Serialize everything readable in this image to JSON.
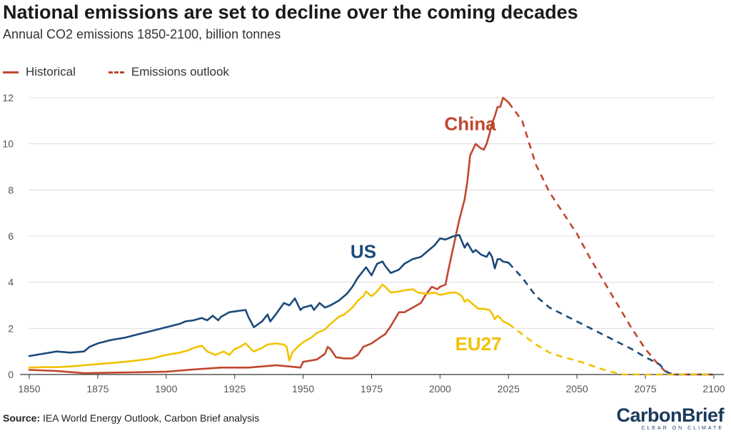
{
  "title": "National emissions are set to decline over the coming decades",
  "subtitle": "Annual CO2 emissions 1850-2100, billion tonnes",
  "legend": {
    "historical": "Historical",
    "outlook": "Emissions outlook"
  },
  "source": {
    "label": "Source:",
    "text": "IEA World Energy Outlook, Carbon Brief analysis"
  },
  "brand": {
    "name_part1": "Carbon",
    "name_part2": "Brief",
    "tagline": "CLEAR ON CLIMATE"
  },
  "colors": {
    "china": "#c0472e",
    "us": "#1b4a7a",
    "eu27": "#f2c200",
    "grid": "#dcdcdc",
    "axis": "#333333"
  },
  "chart_data": {
    "type": "line",
    "title": "National emissions are set to decline over the coming decades",
    "ylabel": "",
    "xlabel": "",
    "xlim": [
      1850,
      2100
    ],
    "ylim": [
      0,
      12
    ],
    "x_ticks": [
      1850,
      1875,
      1900,
      1925,
      1950,
      1975,
      2000,
      2025,
      2050,
      2075,
      2100
    ],
    "y_ticks": [
      0,
      2,
      4,
      6,
      8,
      10,
      12
    ],
    "grid": "horizontal",
    "legend_position": "top-left",
    "series": [
      {
        "name": "China",
        "color_key": "china",
        "historical": [
          [
            1850,
            0.2
          ],
          [
            1860,
            0.15
          ],
          [
            1870,
            0.06
          ],
          [
            1880,
            0.08
          ],
          [
            1890,
            0.1
          ],
          [
            1900,
            0.12
          ],
          [
            1910,
            0.22
          ],
          [
            1920,
            0.3
          ],
          [
            1930,
            0.3
          ],
          [
            1940,
            0.4
          ],
          [
            1945,
            0.35
          ],
          [
            1949,
            0.3
          ],
          [
            1950,
            0.55
          ],
          [
            1955,
            0.65
          ],
          [
            1958,
            0.9
          ],
          [
            1959,
            1.2
          ],
          [
            1960,
            1.1
          ],
          [
            1962,
            0.75
          ],
          [
            1965,
            0.7
          ],
          [
            1968,
            0.7
          ],
          [
            1970,
            0.85
          ],
          [
            1972,
            1.2
          ],
          [
            1975,
            1.35
          ],
          [
            1978,
            1.6
          ],
          [
            1980,
            1.75
          ],
          [
            1982,
            2.1
          ],
          [
            1985,
            2.7
          ],
          [
            1987,
            2.7
          ],
          [
            1990,
            2.9
          ],
          [
            1993,
            3.1
          ],
          [
            1995,
            3.5
          ],
          [
            1997,
            3.8
          ],
          [
            1999,
            3.7
          ],
          [
            2000,
            3.8
          ],
          [
            2002,
            3.9
          ],
          [
            2003,
            4.5
          ],
          [
            2005,
            5.6
          ],
          [
            2007,
            6.7
          ],
          [
            2009,
            7.6
          ],
          [
            2010,
            8.4
          ],
          [
            2011,
            9.5
          ],
          [
            2013,
            10.0
          ],
          [
            2015,
            9.8
          ],
          [
            2016,
            9.75
          ],
          [
            2017,
            10.0
          ],
          [
            2018,
            10.4
          ],
          [
            2019,
            10.9
          ],
          [
            2020,
            11.2
          ],
          [
            2021,
            11.6
          ],
          [
            2022,
            11.6
          ],
          [
            2023,
            12.0
          ],
          [
            2024,
            11.9
          ],
          [
            2025,
            11.8
          ]
        ],
        "outlook": [
          [
            2025,
            11.8
          ],
          [
            2030,
            11.0
          ],
          [
            2035,
            9.1
          ],
          [
            2040,
            7.9
          ],
          [
            2045,
            7.0
          ],
          [
            2050,
            6.1
          ],
          [
            2055,
            5.0
          ],
          [
            2060,
            4.0
          ],
          [
            2065,
            3.0
          ],
          [
            2070,
            2.0
          ],
          [
            2075,
            1.1
          ],
          [
            2080,
            0.4
          ],
          [
            2083,
            0.05
          ],
          [
            2085,
            0.0
          ],
          [
            2100,
            0.0
          ]
        ]
      },
      {
        "name": "US",
        "color_key": "us",
        "historical": [
          [
            1850,
            0.8
          ],
          [
            1855,
            0.9
          ],
          [
            1860,
            1.0
          ],
          [
            1865,
            0.95
          ],
          [
            1870,
            1.0
          ],
          [
            1872,
            1.2
          ],
          [
            1875,
            1.35
          ],
          [
            1880,
            1.5
          ],
          [
            1885,
            1.6
          ],
          [
            1890,
            1.75
          ],
          [
            1895,
            1.9
          ],
          [
            1900,
            2.05
          ],
          [
            1905,
            2.2
          ],
          [
            1907,
            2.3
          ],
          [
            1910,
            2.35
          ],
          [
            1913,
            2.45
          ],
          [
            1915,
            2.35
          ],
          [
            1917,
            2.55
          ],
          [
            1919,
            2.35
          ],
          [
            1920,
            2.5
          ],
          [
            1923,
            2.7
          ],
          [
            1926,
            2.75
          ],
          [
            1929,
            2.8
          ],
          [
            1930,
            2.5
          ],
          [
            1932,
            2.05
          ],
          [
            1935,
            2.3
          ],
          [
            1937,
            2.6
          ],
          [
            1938,
            2.3
          ],
          [
            1940,
            2.6
          ],
          [
            1943,
            3.1
          ],
          [
            1945,
            3.0
          ],
          [
            1947,
            3.3
          ],
          [
            1949,
            2.8
          ],
          [
            1950,
            2.9
          ],
          [
            1953,
            3.0
          ],
          [
            1954,
            2.8
          ],
          [
            1956,
            3.1
          ],
          [
            1958,
            2.9
          ],
          [
            1960,
            3.0
          ],
          [
            1963,
            3.2
          ],
          [
            1966,
            3.5
          ],
          [
            1968,
            3.8
          ],
          [
            1970,
            4.2
          ],
          [
            1972,
            4.5
          ],
          [
            1973,
            4.65
          ],
          [
            1975,
            4.3
          ],
          [
            1977,
            4.8
          ],
          [
            1979,
            4.9
          ],
          [
            1980,
            4.7
          ],
          [
            1982,
            4.4
          ],
          [
            1985,
            4.55
          ],
          [
            1987,
            4.8
          ],
          [
            1990,
            5.0
          ],
          [
            1993,
            5.1
          ],
          [
            1995,
            5.3
          ],
          [
            1998,
            5.6
          ],
          [
            2000,
            5.9
          ],
          [
            2002,
            5.85
          ],
          [
            2005,
            6.0
          ],
          [
            2007,
            6.05
          ],
          [
            2009,
            5.5
          ],
          [
            2010,
            5.7
          ],
          [
            2012,
            5.3
          ],
          [
            2013,
            5.4
          ],
          [
            2015,
            5.2
          ],
          [
            2017,
            5.1
          ],
          [
            2018,
            5.3
          ],
          [
            2019,
            5.1
          ],
          [
            2020,
            4.6
          ],
          [
            2021,
            5.0
          ],
          [
            2022,
            5.0
          ],
          [
            2023,
            4.9
          ],
          [
            2025,
            4.85
          ]
        ],
        "outlook": [
          [
            2025,
            4.85
          ],
          [
            2030,
            4.2
          ],
          [
            2035,
            3.4
          ],
          [
            2040,
            2.9
          ],
          [
            2045,
            2.6
          ],
          [
            2050,
            2.3
          ],
          [
            2055,
            2.0
          ],
          [
            2060,
            1.7
          ],
          [
            2065,
            1.4
          ],
          [
            2070,
            1.1
          ],
          [
            2075,
            0.75
          ],
          [
            2080,
            0.45
          ],
          [
            2083,
            0.1
          ],
          [
            2085,
            0.0
          ],
          [
            2100,
            0.0
          ]
        ]
      },
      {
        "name": "EU27",
        "color_key": "eu27",
        "historical": [
          [
            1850,
            0.3
          ],
          [
            1855,
            0.32
          ],
          [
            1860,
            0.32
          ],
          [
            1865,
            0.35
          ],
          [
            1870,
            0.4
          ],
          [
            1875,
            0.45
          ],
          [
            1880,
            0.5
          ],
          [
            1885,
            0.55
          ],
          [
            1890,
            0.62
          ],
          [
            1895,
            0.7
          ],
          [
            1900,
            0.85
          ],
          [
            1905,
            0.95
          ],
          [
            1908,
            1.05
          ],
          [
            1910,
            1.15
          ],
          [
            1913,
            1.25
          ],
          [
            1915,
            1.0
          ],
          [
            1917,
            0.9
          ],
          [
            1918,
            0.85
          ],
          [
            1919,
            0.9
          ],
          [
            1921,
            1.0
          ],
          [
            1923,
            0.85
          ],
          [
            1925,
            1.1
          ],
          [
            1927,
            1.2
          ],
          [
            1929,
            1.35
          ],
          [
            1931,
            1.1
          ],
          [
            1932,
            1.0
          ],
          [
            1935,
            1.15
          ],
          [
            1937,
            1.3
          ],
          [
            1940,
            1.35
          ],
          [
            1943,
            1.3
          ],
          [
            1944,
            1.2
          ],
          [
            1945,
            0.6
          ],
          [
            1946,
            0.95
          ],
          [
            1948,
            1.2
          ],
          [
            1950,
            1.4
          ],
          [
            1953,
            1.6
          ],
          [
            1955,
            1.8
          ],
          [
            1958,
            1.95
          ],
          [
            1960,
            2.2
          ],
          [
            1963,
            2.5
          ],
          [
            1965,
            2.6
          ],
          [
            1968,
            2.9
          ],
          [
            1970,
            3.2
          ],
          [
            1972,
            3.4
          ],
          [
            1973,
            3.6
          ],
          [
            1975,
            3.4
          ],
          [
            1977,
            3.6
          ],
          [
            1979,
            3.9
          ],
          [
            1980,
            3.8
          ],
          [
            1982,
            3.55
          ],
          [
            1985,
            3.6
          ],
          [
            1987,
            3.65
          ],
          [
            1990,
            3.7
          ],
          [
            1992,
            3.55
          ],
          [
            1995,
            3.5
          ],
          [
            1998,
            3.55
          ],
          [
            2000,
            3.45
          ],
          [
            2002,
            3.5
          ],
          [
            2004,
            3.55
          ],
          [
            2006,
            3.55
          ],
          [
            2008,
            3.4
          ],
          [
            2009,
            3.15
          ],
          [
            2010,
            3.25
          ],
          [
            2012,
            3.05
          ],
          [
            2014,
            2.85
          ],
          [
            2016,
            2.85
          ],
          [
            2018,
            2.8
          ],
          [
            2019,
            2.65
          ],
          [
            2020,
            2.4
          ],
          [
            2021,
            2.55
          ],
          [
            2022,
            2.45
          ],
          [
            2023,
            2.3
          ],
          [
            2025,
            2.2
          ]
        ],
        "outlook": [
          [
            2025,
            2.2
          ],
          [
            2030,
            1.75
          ],
          [
            2035,
            1.3
          ],
          [
            2040,
            0.95
          ],
          [
            2045,
            0.75
          ],
          [
            2050,
            0.6
          ],
          [
            2055,
            0.4
          ],
          [
            2060,
            0.2
          ],
          [
            2065,
            0.05
          ],
          [
            2067,
            0.0
          ],
          [
            2100,
            0.0
          ]
        ]
      }
    ],
    "annotations": [
      {
        "text": "China",
        "color_key": "china",
        "x": 2011,
        "y": 10.6
      },
      {
        "text": "US",
        "color_key": "us",
        "x": 1972,
        "y": 5.05
      },
      {
        "text": "EU27",
        "color_key": "eu27",
        "x": 2014,
        "y": 1.05
      }
    ]
  }
}
